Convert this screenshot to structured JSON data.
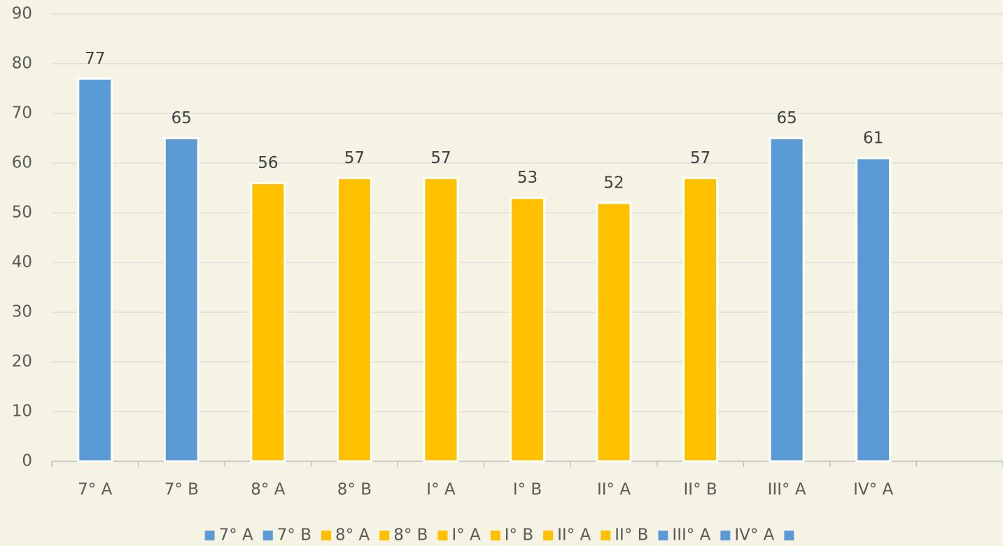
{
  "chart_data": {
    "type": "bar",
    "categories": [
      "7° A",
      "7° B",
      "8° A",
      "8° B",
      "I° A",
      "I° B",
      "II° A",
      "II° B",
      "III° A",
      "IV° A",
      null
    ],
    "values": [
      77,
      65,
      56,
      57,
      57,
      53,
      52,
      57,
      65,
      61,
      null
    ],
    "colors": [
      "#5b9bd5",
      "#5b9bd5",
      "#ffc000",
      "#ffc000",
      "#ffc000",
      "#ffc000",
      "#ffc000",
      "#ffc000",
      "#5b9bd5",
      "#5b9bd5",
      "#5b9bd5"
    ],
    "ylim": [
      0,
      90
    ],
    "yticks": [
      0,
      10,
      20,
      30,
      40,
      50,
      60,
      70,
      80,
      90
    ],
    "grid": true,
    "legend": "bottom"
  }
}
